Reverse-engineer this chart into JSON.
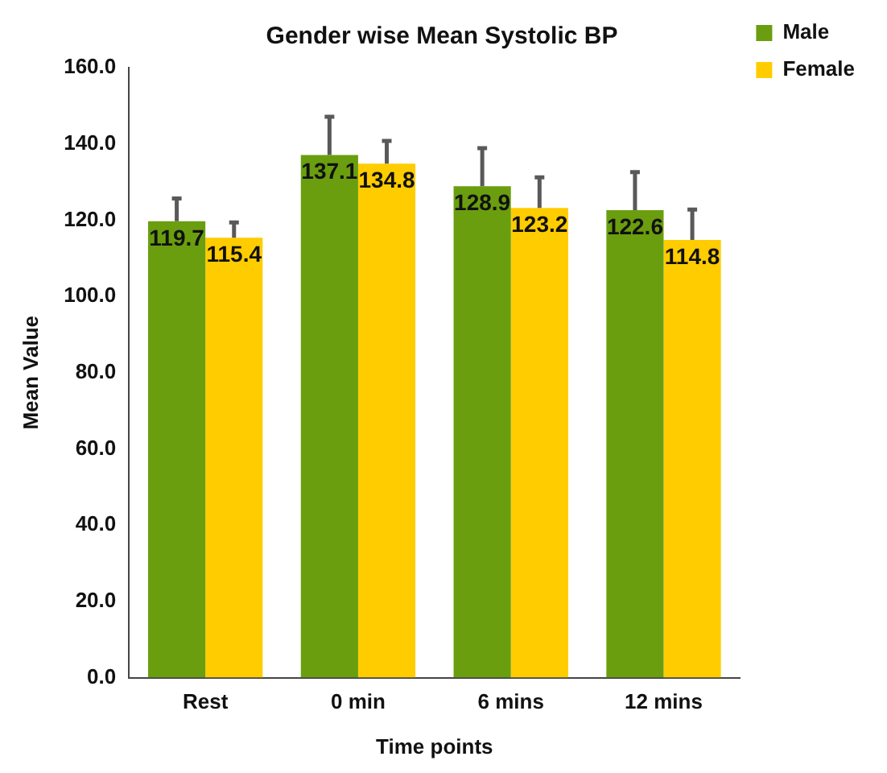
{
  "chart_data": {
    "type": "bar",
    "title": "Gender wise Mean Systolic BP",
    "xlabel": "Time points",
    "ylabel": "Mean Value",
    "categories": [
      "Rest",
      "0 min",
      "6 mins",
      "12 mins"
    ],
    "series": [
      {
        "name": "Male",
        "color": "#6a9e0f",
        "values": [
          119.7,
          137.1,
          128.9,
          122.6
        ],
        "errors": [
          [
            119.7,
            125.7
          ],
          [
            137.1,
            147.1
          ],
          [
            128.9,
            138.9
          ],
          [
            122.6,
            132.6
          ]
        ]
      },
      {
        "name": "Female",
        "color": "#ffcc00",
        "values": [
          115.4,
          134.8,
          123.2,
          114.8
        ],
        "errors": [
          [
            115.4,
            119.4
          ],
          [
            134.8,
            140.8
          ],
          [
            123.2,
            131.2
          ],
          [
            114.8,
            122.8
          ]
        ]
      }
    ],
    "ylim": [
      0,
      160
    ],
    "yticks": [
      {
        "value": 0,
        "label": "0.0"
      },
      {
        "value": 20,
        "label": "20.0"
      },
      {
        "value": 40,
        "label": "40.0"
      },
      {
        "value": 60,
        "label": "60.0"
      },
      {
        "value": 80,
        "label": "80.0"
      },
      {
        "value": 100,
        "label": "100.0"
      },
      {
        "value": 120,
        "label": "120.0"
      },
      {
        "value": 140,
        "label": "140.0"
      },
      {
        "value": 160,
        "label": "160.0"
      }
    ],
    "grid": false,
    "legend": "top right",
    "data_labels": true
  }
}
